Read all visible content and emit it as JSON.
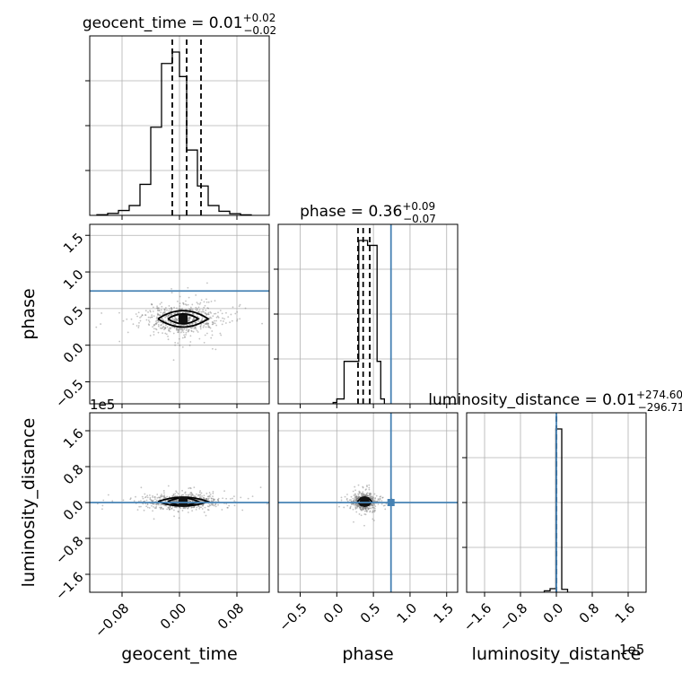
{
  "chart_data": {
    "type": "scatter",
    "subtype": "corner-plot",
    "parameters": [
      {
        "key": "geocent_time",
        "label": "geocent_time",
        "median": "0.01",
        "plus": "+0.02",
        "minus": "−0.02",
        "range": [
          -0.125,
          0.125
        ],
        "ticks": [
          -0.08,
          0.0,
          0.08
        ],
        "tick_labels": [
          "−0.08",
          "0.00",
          "0.08"
        ],
        "quantiles": [
          -0.01,
          0.01,
          0.03
        ],
        "truth": null,
        "hist_edges": [
          -0.115,
          -0.1,
          -0.085,
          -0.07,
          -0.055,
          -0.04,
          -0.025,
          -0.01,
          0.0,
          0.01,
          0.025,
          0.04,
          0.055,
          0.07,
          0.085,
          0.1
        ],
        "hist_counts": [
          0.4,
          1.2,
          3,
          6,
          19,
          54,
          93,
          100,
          85,
          40,
          18,
          6,
          2.5,
          1,
          0.3
        ]
      },
      {
        "key": "phase",
        "label": "phase",
        "median": "0.36",
        "plus": "+0.09",
        "minus": "−0.07",
        "range": [
          -0.8,
          1.65
        ],
        "ticks": [
          -0.5,
          0.0,
          0.5,
          1.0,
          1.5
        ],
        "tick_labels": [
          "−0.5",
          "0.0",
          "0.5",
          "1.0",
          "1.5"
        ],
        "quantiles": [
          0.29,
          0.36,
          0.45
        ],
        "truth": 0.74,
        "hist_edges": [
          -0.05,
          0.0,
          0.1,
          0.3,
          0.42,
          0.55,
          0.6,
          0.65
        ],
        "hist_counts": [
          0.8,
          3,
          26,
          100,
          97,
          26,
          3
        ]
      },
      {
        "key": "luminosity_distance",
        "label": "luminosity_distance",
        "median": "0.01",
        "plus": "+274.60",
        "minus": "−296.71",
        "range": [
          -200000,
          200000
        ],
        "ticks": [
          -160000,
          -80000,
          0,
          80000,
          160000
        ],
        "tick_labels": [
          "−1.6",
          "−0.8",
          "0.0",
          "0.8",
          "1.6"
        ],
        "quantiles": [
          -296.71,
          0.01,
          274.6
        ],
        "truth": 0,
        "hist_edges": [
          -27000,
          -14000,
          -1000,
          12000,
          25000
        ],
        "hist_counts": [
          0.9,
          2.2,
          100,
          1.8
        ]
      }
    ],
    "offset_text": "1e5",
    "truth_color": "#4682b4",
    "grid": true,
    "series": [
      {
        "pair": [
          "geocent_time",
          "phase"
        ],
        "center": [
          0.005,
          0.36
        ],
        "spread": [
          0.025,
          0.09
        ]
      },
      {
        "pair": [
          "geocent_time",
          "luminosity_distance"
        ],
        "center": [
          0.005,
          2000
        ],
        "spread": [
          0.025,
          8000
        ]
      },
      {
        "pair": [
          "phase",
          "luminosity_distance"
        ],
        "center": [
          0.38,
          2000
        ],
        "spread": [
          0.07,
          8000
        ]
      }
    ]
  }
}
